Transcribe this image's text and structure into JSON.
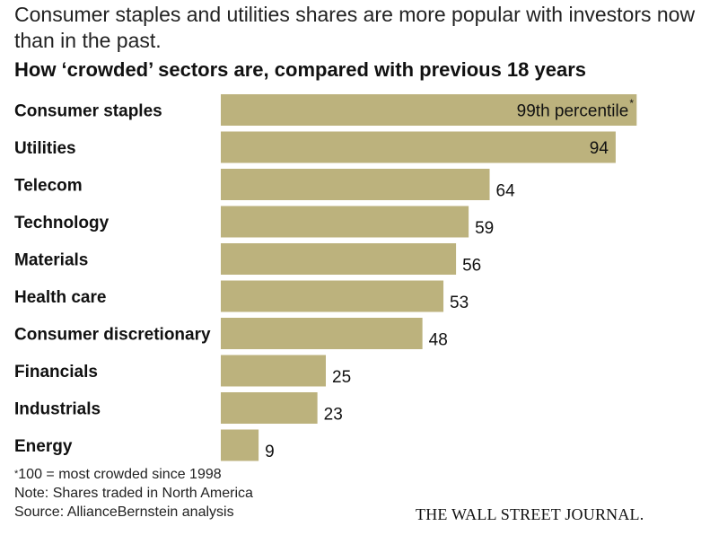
{
  "headline": "Consumer staples and utilities shares are more popular with investors now than in the past.",
  "subhead": "How ‘crowded’ sectors are, compared with previous 18 years",
  "chart_data": {
    "type": "bar",
    "orientation": "horizontal",
    "title": "How ‘crowded’ sectors are, compared with previous 18 years",
    "categories": [
      "Consumer staples",
      "Utilities",
      "Telecom",
      "Technology",
      "Materials",
      "Health care",
      "Consumer discretionary",
      "Financials",
      "Industrials",
      "Energy"
    ],
    "values": [
      99,
      94,
      64,
      59,
      56,
      53,
      48,
      25,
      23,
      9
    ],
    "data_labels": [
      "99th percentile",
      "94",
      "64",
      "59",
      "56",
      "53",
      "48",
      "25",
      "23",
      "9"
    ],
    "first_label_marker": "*",
    "xlim": [
      0,
      100
    ],
    "grid": false,
    "legend": "none",
    "bar_color": "#bcb27d"
  },
  "footnotes": {
    "marker": "*",
    "definition": "100 = most crowded since 1998",
    "note": "Note: Shares traded in North America",
    "source": "Source: AllianceBernstein analysis"
  },
  "logo": "THE WALL STREET JOURNAL.",
  "colors": {
    "bar": "#bcb27d",
    "text": "#111111"
  }
}
